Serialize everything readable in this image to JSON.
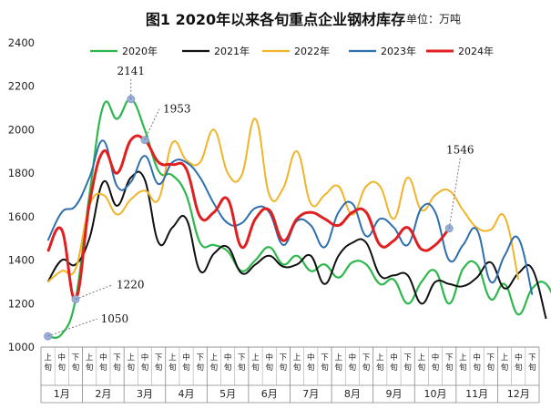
{
  "chart_data": {
    "type": "line",
    "title": "图1  2020年以来各旬重点企业钢材库存",
    "unit_label": "单位：万吨",
    "ylim": [
      1000,
      2400
    ],
    "yticks": [
      1000,
      1200,
      1400,
      1600,
      1800,
      2000,
      2200,
      2400
    ],
    "grid": false,
    "legend": "top",
    "x_sub_labels": [
      "上旬",
      "中旬",
      "下旬"
    ],
    "months": [
      "1月",
      "2月",
      "3月",
      "4月",
      "5月",
      "6月",
      "7月",
      "8月",
      "9月",
      "10月",
      "11月",
      "12月"
    ],
    "series": [
      {
        "name": "2020年",
        "color": "#2db84d",
        "values": [
          1050,
          1060,
          1220,
          1700,
          2110,
          2050,
          2141,
          2000,
          1810,
          1790,
          1700,
          1480,
          1470,
          1440,
          1350,
          1400,
          1460,
          1380,
          1420,
          1350,
          1380,
          1320,
          1390,
          1380,
          1290,
          1310,
          1200,
          1300,
          1350,
          1200,
          1360,
          1380,
          1220,
          1290,
          1150,
          1270,
          1290,
          1160
        ]
      },
      {
        "name": "2021年",
        "color": "#111111",
        "values": [
          1300,
          1400,
          1380,
          1500,
          1760,
          1650,
          1780,
          1770,
          1480,
          1550,
          1590,
          1350,
          1430,
          1460,
          1340,
          1380,
          1420,
          1370,
          1380,
          1420,
          1290,
          1420,
          1480,
          1480,
          1330,
          1330,
          1330,
          1200,
          1300,
          1290,
          1280,
          1320,
          1390,
          1270,
          1340,
          1360,
          1130
        ]
      },
      {
        "name": "2022年",
        "color": "#f0b429",
        "values": [
          1300,
          1350,
          1360,
          1650,
          1700,
          1610,
          1680,
          1720,
          1680,
          1940,
          1860,
          1850,
          2000,
          1800,
          1790,
          2050,
          1700,
          1730,
          1900,
          1660,
          1700,
          1740,
          1610,
          1740,
          1740,
          1590,
          1780,
          1630,
          1700,
          1720,
          1630,
          1550,
          1540,
          1600,
          1310
        ]
      },
      {
        "name": "2023年",
        "color": "#2f6fad",
        "values": [
          1490,
          1620,
          1650,
          1780,
          1950,
          1740,
          1760,
          1880,
          1750,
          1850,
          1850,
          1780,
          1660,
          1570,
          1570,
          1640,
          1620,
          1470,
          1580,
          1560,
          1460,
          1620,
          1660,
          1510,
          1590,
          1550,
          1470,
          1640,
          1620,
          1400,
          1470,
          1540,
          1300,
          1420,
          1500,
          1240
        ]
      },
      {
        "name": "2024年",
        "color": "#e02020",
        "values": [
          1440,
          1540,
          1220,
          1660,
          1900,
          1800,
          1953,
          1953,
          1850,
          1840,
          1820,
          1600,
          1620,
          1680,
          1460,
          1590,
          1630,
          1490,
          1590,
          1620,
          1590,
          1560,
          1620,
          1620,
          1470,
          1490,
          1550,
          1450,
          1470,
          1546
        ]
      }
    ],
    "annotations": [
      {
        "series": "2020年",
        "index": 0,
        "label": "1050"
      },
      {
        "series": "2020年",
        "index": 6,
        "label": "2141"
      },
      {
        "series": "2024年",
        "index": 2,
        "label": "1220"
      },
      {
        "series": "2024年",
        "index": 7,
        "label": "1953"
      },
      {
        "series": "2024年",
        "index": 29,
        "label": "1546"
      }
    ]
  }
}
